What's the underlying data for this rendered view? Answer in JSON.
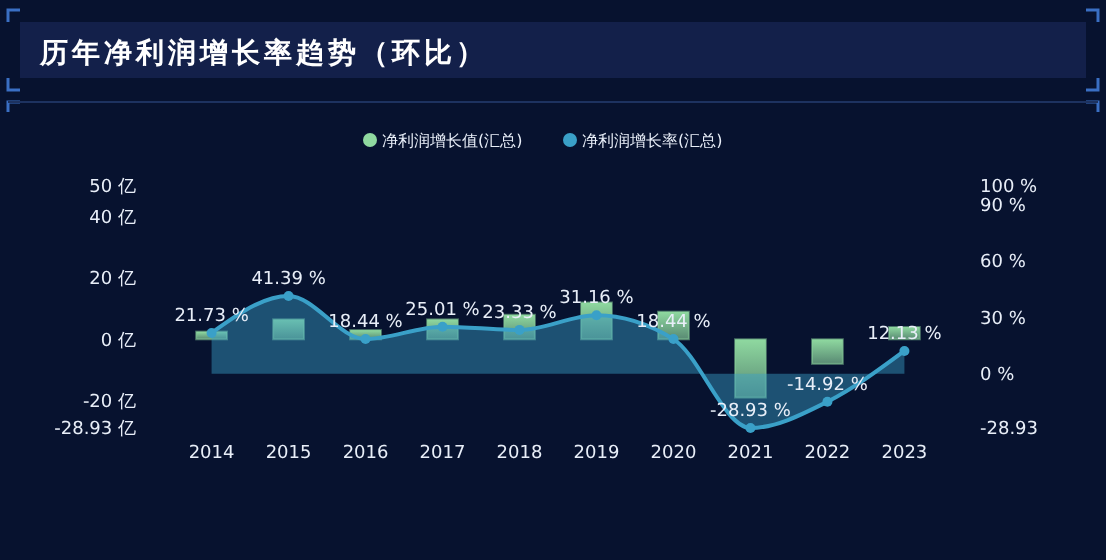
{
  "chart_data": {
    "type": "bar",
    "title": "历年净利润增长率趋势（环比）",
    "categories": [
      "2014",
      "2015",
      "2016",
      "2017",
      "2018",
      "2019",
      "2020",
      "2021",
      "2022",
      "2023"
    ],
    "series": [
      {
        "name": "净利润增长值(汇总)",
        "color": "#8fd9a0",
        "values": [
          2.5,
          6.5,
          3,
          6.5,
          8,
          12,
          9,
          -19,
          -8,
          4
        ]
      },
      {
        "name": "净利润增长率(汇总)",
        "type": "area",
        "axis": "y2",
        "color": "#3aa0c8",
        "values": [
          21.73,
          41.39,
          18.44,
          25.01,
          23.33,
          31.16,
          18.44,
          -28.93,
          -14.92,
          12.13
        ],
        "value_labels": [
          "21.73 %",
          "41.39 %",
          "18.44 %",
          "25.01 %",
          "23.33 %",
          "31.16 %",
          "18.44 %",
          "-28.93 %",
          "-14.92 %",
          "12.13 %"
        ]
      }
    ],
    "ylim": [
      -28.93,
      50
    ],
    "yticks": [
      {
        "value": -28.93,
        "label": "-28.93 亿"
      },
      {
        "value": -20,
        "label": "-20 亿"
      },
      {
        "value": 0,
        "label": "0 亿"
      },
      {
        "value": 20,
        "label": "20 亿"
      },
      {
        "value": 40,
        "label": "40 亿"
      },
      {
        "value": 50,
        "label": "50 亿"
      }
    ],
    "y2lim": [
      -28.93,
      100
    ],
    "y2ticks": [
      {
        "value": -28.93,
        "label": "-28.93"
      },
      {
        "value": 0,
        "label": "0 %"
      },
      {
        "value": 30,
        "label": "30 %"
      },
      {
        "value": 60,
        "label": "60 %"
      },
      {
        "value": 90,
        "label": "90 %"
      },
      {
        "value": 100,
        "label": "100 %"
      }
    ],
    "legend": "top",
    "marker": "circle",
    "grid": false
  }
}
